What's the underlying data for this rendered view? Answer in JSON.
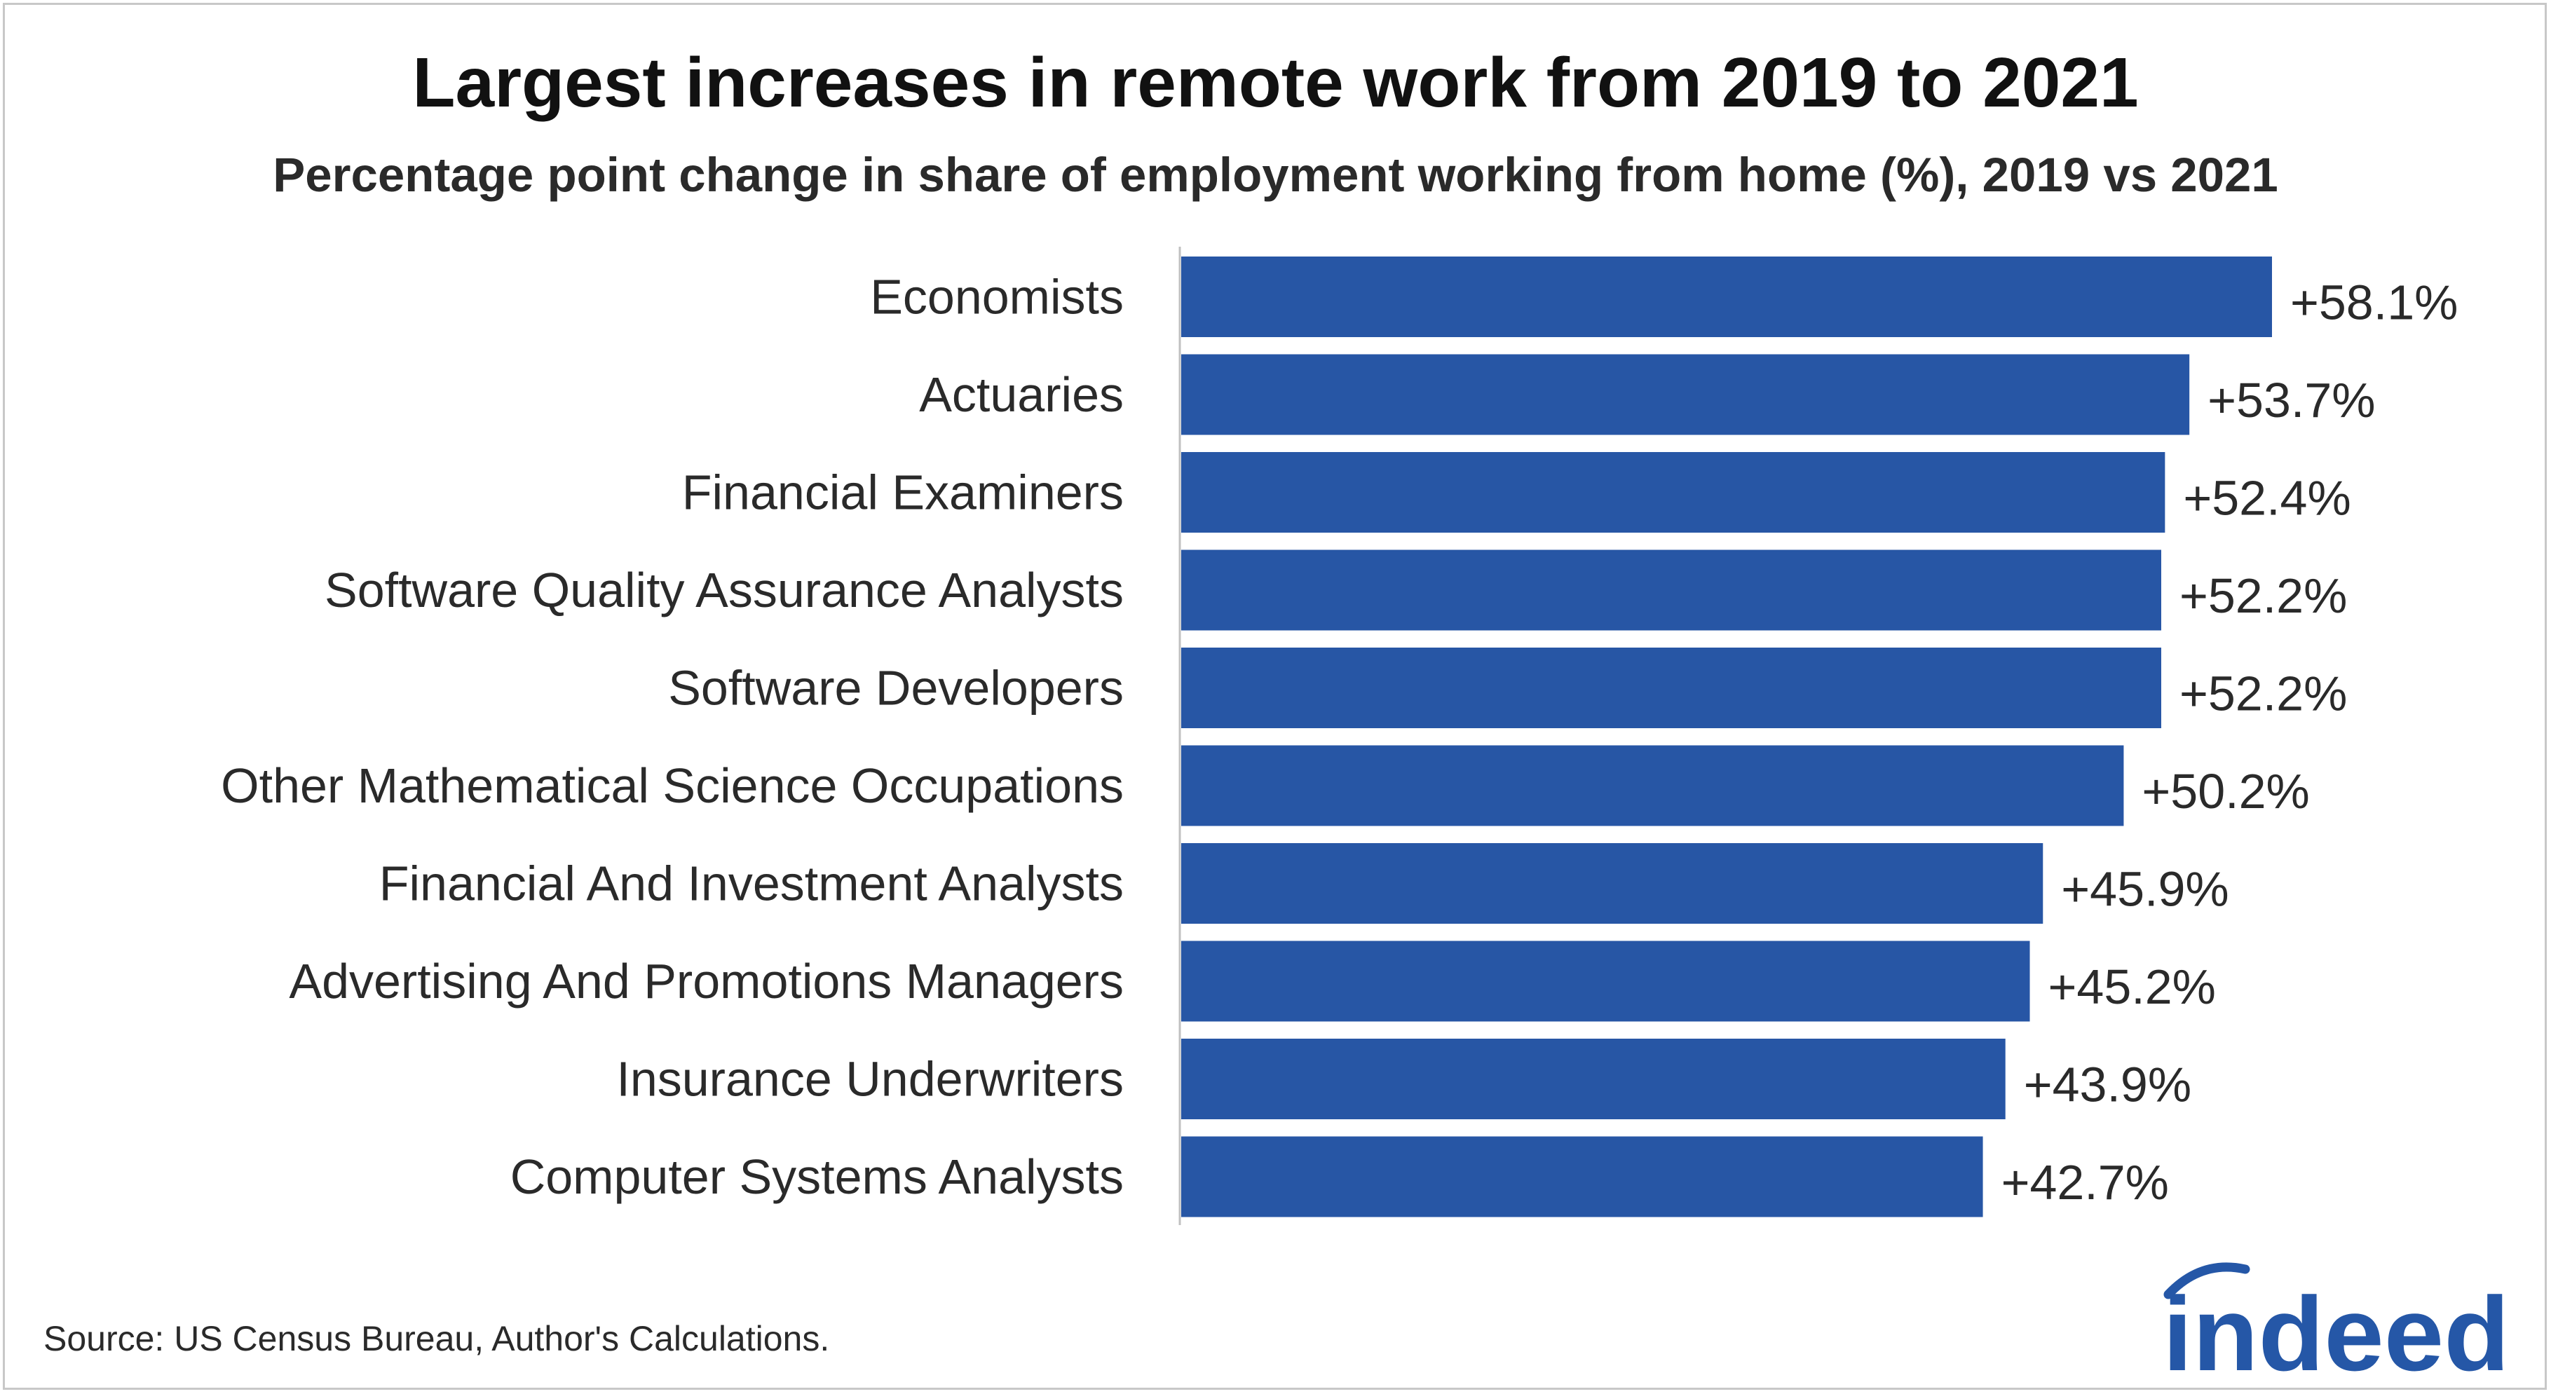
{
  "chart_data": {
    "type": "bar",
    "orientation": "horizontal",
    "title": "Largest increases in remote work from 2019 to 2021",
    "subtitle": "Percentage point change in share of employment working from home (%), 2019 vs 2021",
    "categories": [
      "Economists",
      "Actuaries",
      "Financial Examiners",
      "Software Quality Assurance Analysts",
      "Software Developers",
      "Other Mathematical Science Occupations",
      "Financial And Investment Analysts",
      "Advertising And Promotions Managers",
      "Insurance Underwriters",
      "Computer Systems Analysts"
    ],
    "values": [
      58.1,
      53.7,
      52.4,
      52.2,
      52.2,
      50.2,
      45.9,
      45.2,
      43.9,
      42.7
    ],
    "data_labels": [
      "+58.1%",
      "+53.7%",
      "+52.4%",
      "+52.2%",
      "+52.2%",
      "+50.2%",
      "+45.9%",
      "+45.2%",
      "+43.9%",
      "+42.7%"
    ],
    "xlim": [
      0,
      58.1
    ],
    "bar_color": "#2756a5",
    "grid": false,
    "legend": "none"
  },
  "source": "Source: US Census Bureau, Author's Calculations.",
  "logo": {
    "text": "indeed",
    "icon": "indeed-logo",
    "color": "#2557a7"
  }
}
